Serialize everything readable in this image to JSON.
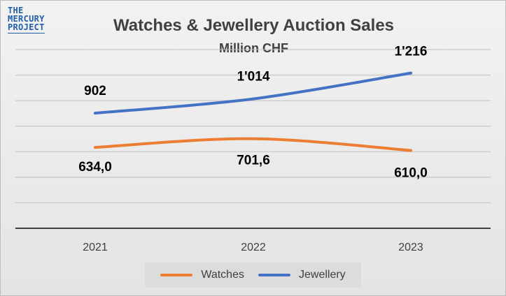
{
  "logo": {
    "line1": "THE",
    "line2": "MERCURY",
    "line3": "PROJECT"
  },
  "chart_data": {
    "type": "line",
    "title": "Watches & Jewellery Auction Sales",
    "subtitle": "Million CHF",
    "categories": [
      "2021",
      "2022",
      "2023"
    ],
    "series": [
      {
        "name": "Watches",
        "values": [
          634.0,
          701.6,
          610.0
        ],
        "labels": [
          "634,0",
          "701,6",
          "610,0"
        ],
        "color": "#ed7d31"
      },
      {
        "name": "Jewellery",
        "values": [
          902,
          1014,
          1216
        ],
        "labels": [
          "902",
          "1'014",
          "1'216"
        ],
        "color": "#4472c4"
      }
    ],
    "ylim": [
      0,
      1400
    ],
    "grid": true,
    "legend": "bottom"
  }
}
